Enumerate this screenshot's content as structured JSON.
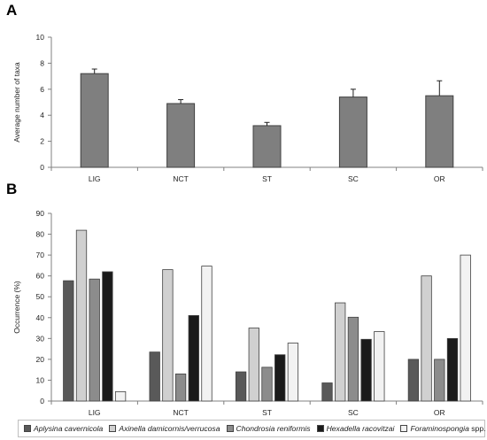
{
  "chart_data": [
    {
      "panel_label": "A",
      "type": "bar",
      "ylabel": "Average number of taxa",
      "ylim": [
        0,
        10
      ],
      "yticks": [
        0,
        2,
        4,
        6,
        8,
        10
      ],
      "categories": [
        "LIG",
        "NCT",
        "ST",
        "SC",
        "OR"
      ],
      "series": [
        {
          "values": [
            7.2,
            4.9,
            3.2,
            5.4,
            5.5
          ],
          "errors": [
            0.35,
            0.3,
            0.25,
            0.6,
            1.15
          ],
          "color": "#7f7f7f"
        }
      ],
      "grid": false
    },
    {
      "panel_label": "B",
      "type": "bar",
      "ylabel": "Occurrence (%)",
      "ylim": [
        0,
        90
      ],
      "yticks": [
        0,
        10,
        20,
        30,
        40,
        50,
        60,
        70,
        80,
        90
      ],
      "categories": [
        "LIG",
        "NCT",
        "ST",
        "SC",
        "OR"
      ],
      "series": [
        {
          "name_italic": "Aplysina cavernicola",
          "name_suffix": "",
          "color": "#595959",
          "values": [
            57.7,
            23.5,
            14.0,
            8.7,
            20.0
          ]
        },
        {
          "name_italic": "Axinella damicornis/verrucosa",
          "name_suffix": "",
          "color": "#d0d0d0",
          "values": [
            81.9,
            63.0,
            35.0,
            47.1,
            60.0
          ]
        },
        {
          "name_italic": "Chondrosia reniformis",
          "name_suffix": "",
          "color": "#8c8c8c",
          "values": [
            58.5,
            13.0,
            16.2,
            40.2,
            20.0
          ]
        },
        {
          "name_italic": "Hexadella racovitzai",
          "name_suffix": "",
          "color": "#1a1a1a",
          "values": [
            62.0,
            41.0,
            22.2,
            29.6,
            30.0
          ]
        },
        {
          "name_italic": "Foraminospongia",
          "name_suffix": " spp.",
          "color": "#f2f2f2",
          "values": [
            4.5,
            64.7,
            27.8,
            33.3,
            70.0
          ]
        }
      ],
      "legend_position": "bottom",
      "grid": false
    }
  ]
}
